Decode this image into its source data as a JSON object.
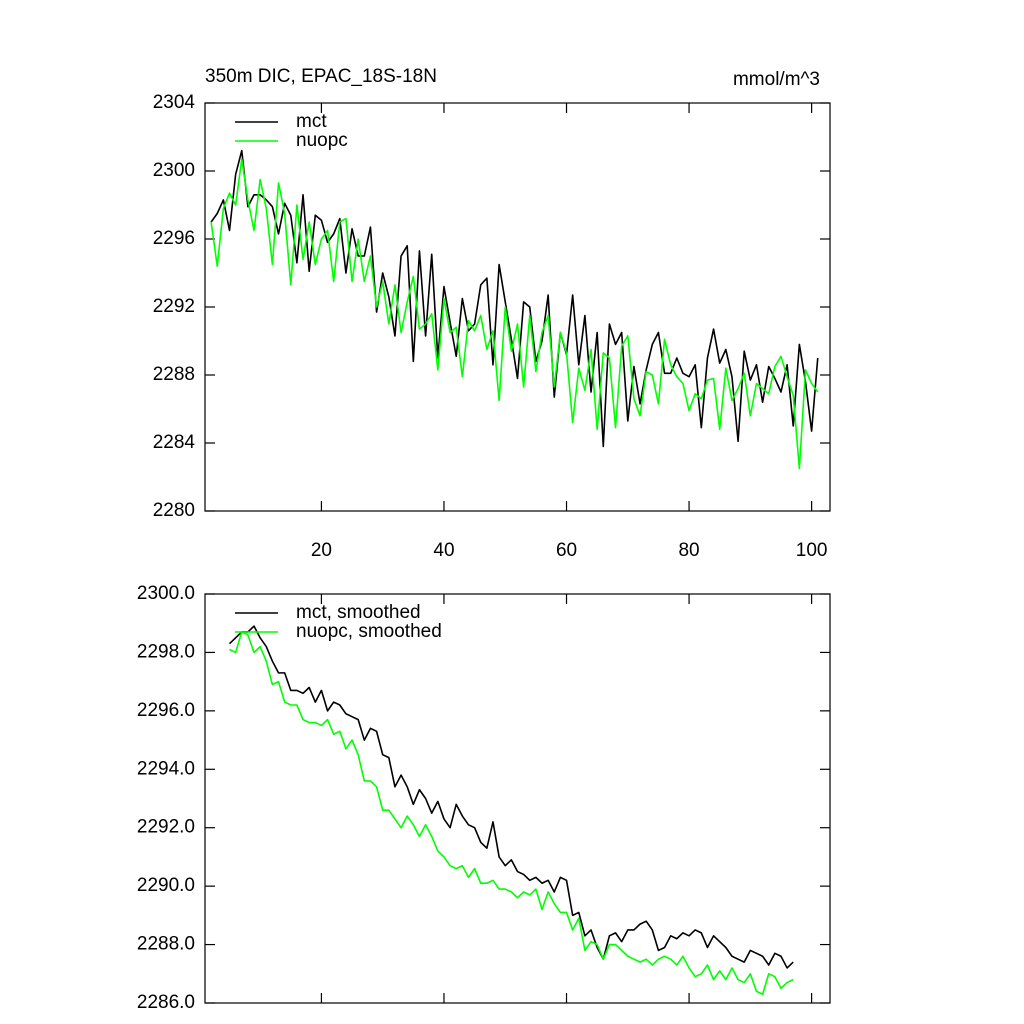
{
  "chart_data": [
    {
      "type": "line",
      "title": "350m DIC, EPAC_18S-18N",
      "units": "mmol/m^3",
      "x": [
        2,
        3,
        4,
        5,
        6,
        7,
        8,
        9,
        10,
        11,
        12,
        13,
        14,
        15,
        16,
        17,
        18,
        19,
        20,
        21,
        22,
        23,
        24,
        25,
        26,
        27,
        28,
        29,
        30,
        31,
        32,
        33,
        34,
        35,
        36,
        37,
        38,
        39,
        40,
        41,
        42,
        43,
        44,
        45,
        46,
        47,
        48,
        49,
        50,
        51,
        52,
        53,
        54,
        55,
        56,
        57,
        58,
        59,
        60,
        61,
        62,
        63,
        64,
        65,
        66,
        67,
        68,
        69,
        70,
        71,
        72,
        73,
        74,
        75,
        76,
        77,
        78,
        79,
        80,
        81,
        82,
        83,
        84,
        85,
        86,
        87,
        88,
        89,
        90,
        91,
        92,
        93,
        94,
        95,
        96,
        97,
        98,
        99,
        100,
        101
      ],
      "series": [
        {
          "name": "mct",
          "color": "#000000",
          "values": [
            2297.0,
            2297.5,
            2298.3,
            2296.5,
            2299.8,
            2301.2,
            2297.9,
            2298.6,
            2298.6,
            2298.3,
            2297.9,
            2296.3,
            2298.1,
            2297.4,
            2294.6,
            2298.6,
            2294.1,
            2297.4,
            2297.1,
            2295.8,
            2296.3,
            2297.2,
            2294.0,
            2296.6,
            2295.0,
            2295.0,
            2296.7,
            2291.7,
            2294.0,
            2292.6,
            2290.3,
            2295.0,
            2295.6,
            2288.8,
            2295.3,
            2290.3,
            2295.1,
            2289.0,
            2293.2,
            2291.1,
            2289.1,
            2292.5,
            2290.6,
            2291.0,
            2293.3,
            2293.7,
            2288.6,
            2294.5,
            2292.3,
            2290.1,
            2287.8,
            2292.3,
            2292.0,
            2288.8,
            2290.0,
            2292.7,
            2286.7,
            2290.5,
            2289.2,
            2292.7,
            2288.6,
            2291.5,
            2287.0,
            2290.5,
            2283.8,
            2291.0,
            2289.8,
            2290.5,
            2285.3,
            2288.5,
            2286.3,
            2288.3,
            2289.8,
            2290.5,
            2288.1,
            2288.1,
            2289.0,
            2288.1,
            2287.9,
            2288.6,
            2284.9,
            2289.0,
            2290.7,
            2288.7,
            2289.5,
            2287.9,
            2284.1,
            2289.4,
            2287.7,
            2288.6,
            2286.4,
            2288.5,
            2287.8,
            2287.0,
            2288.6,
            2285.0,
            2289.8,
            2287.6,
            2284.7,
            2289.0
          ]
        },
        {
          "name": "nuopc",
          "color": "#00ff00",
          "values": [
            2297.0,
            2294.4,
            2297.8,
            2298.7,
            2298.0,
            2300.7,
            2298.3,
            2296.5,
            2299.5,
            2297.8,
            2294.5,
            2299.3,
            2297.5,
            2293.3,
            2298.0,
            2294.8,
            2297.0,
            2294.5,
            2296.0,
            2296.5,
            2293.5,
            2297.0,
            2297.2,
            2293.5,
            2296.0,
            2293.5,
            2295.0,
            2292.0,
            2293.5,
            2291.0,
            2293.3,
            2290.5,
            2292.3,
            2293.8,
            2290.7,
            2291.0,
            2291.6,
            2288.3,
            2292.5,
            2290.5,
            2290.8,
            2287.9,
            2291.2,
            2290.6,
            2291.5,
            2289.5,
            2290.6,
            2286.5,
            2292.0,
            2289.4,
            2291.0,
            2287.3,
            2291.5,
            2288.2,
            2290.5,
            2291.5,
            2287.3,
            2290.5,
            2289.3,
            2285.2,
            2288.4,
            2287.1,
            2289.5,
            2284.8,
            2289.3,
            2289.0,
            2284.9,
            2289.7,
            2290.3,
            2286.6,
            2285.6,
            2288.2,
            2288.0,
            2286.3,
            2290.1,
            2288.6,
            2287.9,
            2287.5,
            2285.9,
            2286.9,
            2286.6,
            2287.7,
            2287.8,
            2284.8,
            2288.4,
            2286.5,
            2287.2,
            2288.1,
            2285.6,
            2287.5,
            2287.2,
            2286.9,
            2288.5,
            2289.1,
            2287.9,
            2286.8,
            2282.5,
            2288.3,
            2287.5,
            2287.0
          ]
        }
      ],
      "xlim": [
        1,
        103
      ],
      "xticks": [
        20,
        40,
        60,
        80,
        100
      ],
      "xtick_labels": true,
      "ylim": [
        2280,
        2304
      ],
      "yticks": [
        2280,
        2284,
        2288,
        2292,
        2296,
        2300,
        2304
      ],
      "legend": "upper left"
    },
    {
      "type": "line",
      "x": [
        5,
        6,
        7,
        8,
        9,
        10,
        11,
        12,
        13,
        14,
        15,
        16,
        17,
        18,
        19,
        20,
        21,
        22,
        23,
        24,
        25,
        26,
        27,
        28,
        29,
        30,
        31,
        32,
        33,
        34,
        35,
        36,
        37,
        38,
        39,
        40,
        41,
        42,
        43,
        44,
        45,
        46,
        47,
        48,
        49,
        50,
        51,
        52,
        53,
        54,
        55,
        56,
        57,
        58,
        59,
        60,
        61,
        62,
        63,
        64,
        65,
        66,
        67,
        68,
        69,
        70,
        71,
        72,
        73,
        74,
        75,
        76,
        77,
        78,
        79,
        80,
        81,
        82,
        83,
        84,
        85,
        86,
        87,
        88,
        89,
        90,
        91,
        92,
        93,
        94,
        95,
        96,
        97
      ],
      "series": [
        {
          "name": "mct, smoothed",
          "color": "#000000",
          "values": [
            2298.3,
            2298.5,
            2298.7,
            2298.7,
            2298.9,
            2298.5,
            2298.2,
            2297.7,
            2297.3,
            2297.3,
            2296.7,
            2296.7,
            2296.6,
            2296.8,
            2296.3,
            2296.7,
            2296.0,
            2296.3,
            2296.2,
            2295.9,
            2295.8,
            2295.7,
            2295.0,
            2295.4,
            2295.3,
            2294.5,
            2294.4,
            2293.4,
            2293.8,
            2293.4,
            2292.8,
            2293.3,
            2293.0,
            2292.5,
            2292.9,
            2292.3,
            2292.0,
            2292.8,
            2292.4,
            2292.1,
            2292.0,
            2291.5,
            2291.3,
            2292.2,
            2291.0,
            2290.7,
            2290.9,
            2290.5,
            2290.4,
            2290.2,
            2290.3,
            2290.1,
            2290.2,
            2289.8,
            2290.3,
            2290.2,
            2289.0,
            2289.1,
            2288.3,
            2288.5,
            2287.9,
            2287.5,
            2288.3,
            2288.4,
            2288.1,
            2288.5,
            2288.5,
            2288.7,
            2288.8,
            2288.5,
            2287.8,
            2287.9,
            2288.3,
            2288.2,
            2288.4,
            2288.3,
            2288.5,
            2288.4,
            2287.9,
            2288.3,
            2288.1,
            2287.9,
            2287.6,
            2287.5,
            2287.4,
            2287.8,
            2287.7,
            2287.6,
            2287.3,
            2287.7,
            2287.6,
            2287.2,
            2287.4
          ]
        },
        {
          "name": "nuopc, smoothed",
          "color": "#00ff00",
          "values": [
            2298.1,
            2298.0,
            2298.7,
            2298.6,
            2298.0,
            2298.2,
            2297.7,
            2296.9,
            2297.0,
            2296.3,
            2296.2,
            2296.2,
            2295.7,
            2295.6,
            2295.6,
            2295.5,
            2295.7,
            2295.2,
            2295.3,
            2294.7,
            2295.0,
            2294.5,
            2293.6,
            2293.6,
            2293.4,
            2292.6,
            2292.6,
            2292.3,
            2292.0,
            2292.4,
            2292.1,
            2291.7,
            2292.1,
            2291.7,
            2291.2,
            2291.0,
            2290.7,
            2290.6,
            2290.7,
            2290.3,
            2290.6,
            2290.1,
            2290.1,
            2290.2,
            2289.9,
            2289.9,
            2289.8,
            2289.6,
            2289.8,
            2289.7,
            2289.9,
            2289.2,
            2289.8,
            2289.4,
            2289.1,
            2289.1,
            2288.5,
            2288.9,
            2287.8,
            2288.1,
            2288.0,
            2287.5,
            2288.0,
            2288.0,
            2287.8,
            2287.6,
            2287.5,
            2287.4,
            2287.5,
            2287.3,
            2287.5,
            2287.6,
            2287.5,
            2287.3,
            2287.6,
            2287.2,
            2286.9,
            2287.0,
            2287.3,
            2286.8,
            2287.1,
            2286.8,
            2287.2,
            2286.8,
            2286.7,
            2287.0,
            2286.4,
            2286.3,
            2287.0,
            2286.9,
            2286.5,
            2286.7,
            2286.8
          ]
        }
      ],
      "xlim": [
        1,
        103
      ],
      "xticks": [
        20,
        40,
        60,
        80,
        100
      ],
      "xtick_labels": false,
      "ylim": [
        2286,
        2300
      ],
      "yticks": [
        {
          "value": 2286,
          "label": "2286.0"
        },
        {
          "value": 2288,
          "label": "2288.0"
        },
        {
          "value": 2290,
          "label": "2290.0"
        },
        {
          "value": 2292,
          "label": "2292.0"
        },
        {
          "value": 2294,
          "label": "2294.0"
        },
        {
          "value": 2296,
          "label": "2296.0"
        },
        {
          "value": 2298,
          "label": "2298.0"
        },
        {
          "value": 2300,
          "label": "2300.0"
        }
      ],
      "legend": "upper left"
    }
  ]
}
